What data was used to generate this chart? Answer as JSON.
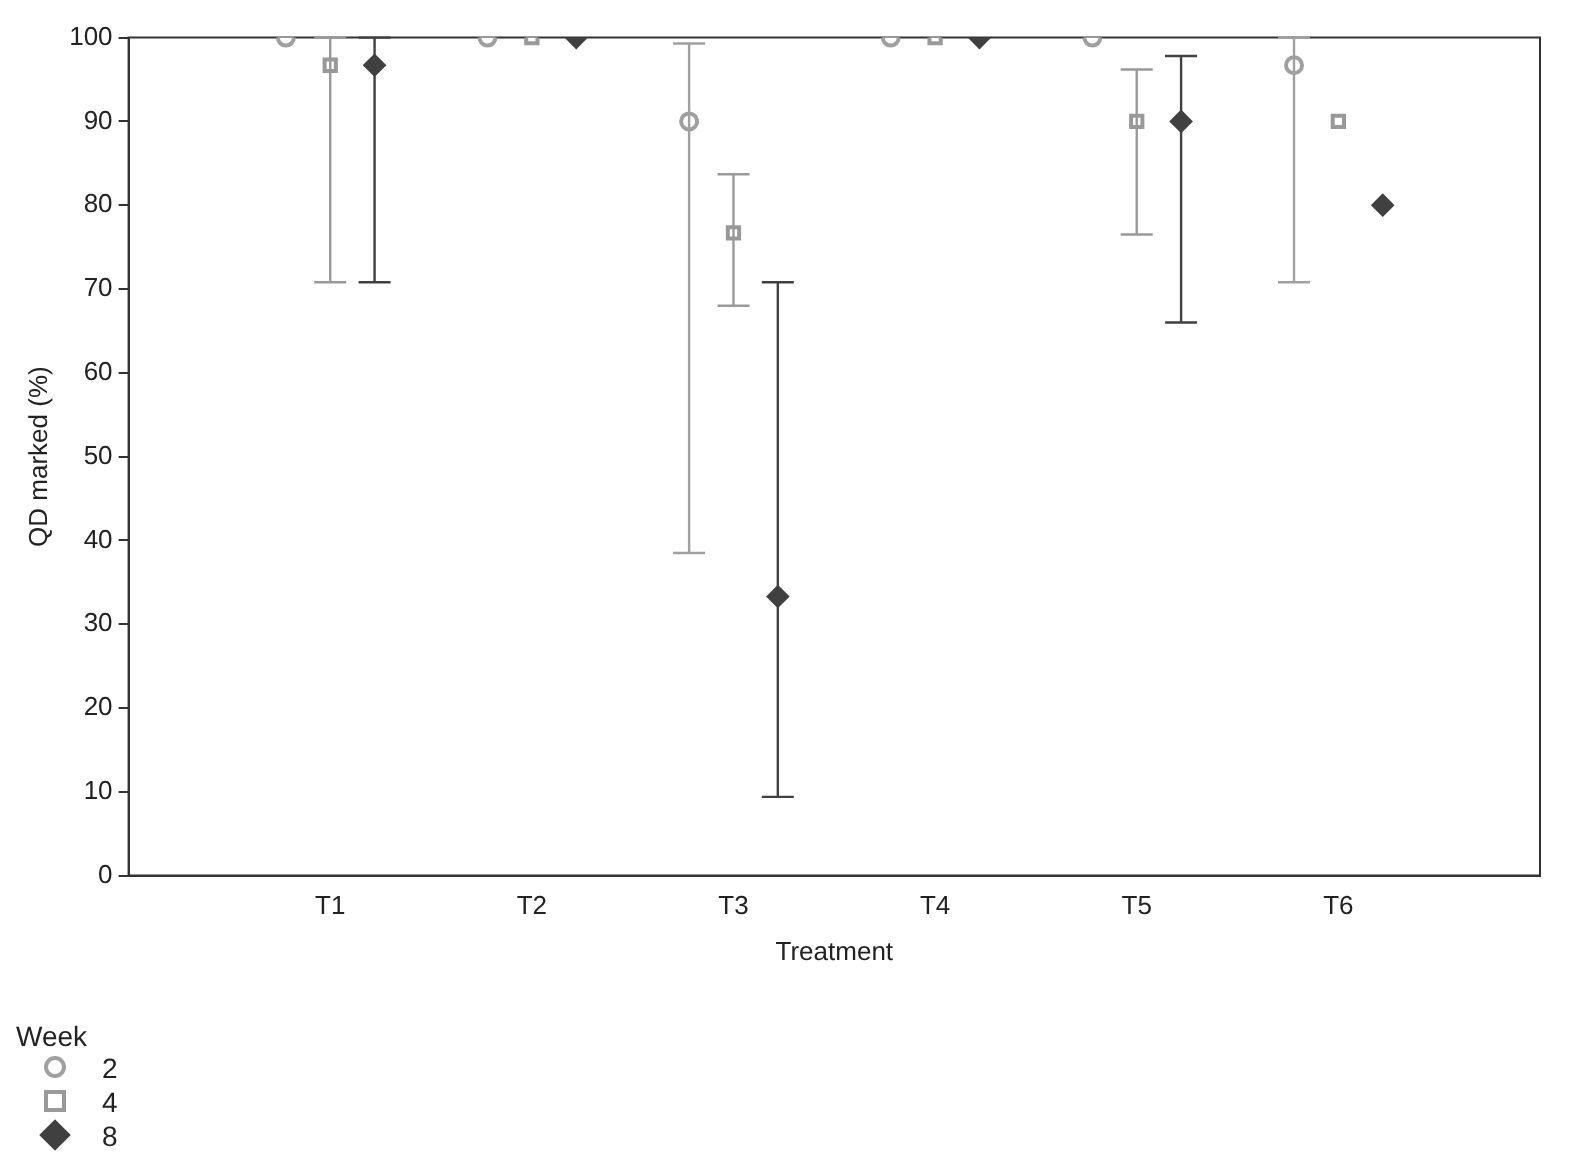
{
  "chart_data": {
    "type": "scatter",
    "xlabel": "Treatment",
    "ylabel": "QD marked (%)",
    "legend_title": "Week",
    "legend": "bottom left",
    "grid": false,
    "categories": [
      "T1",
      "T2",
      "T3",
      "T4",
      "T5",
      "T6"
    ],
    "ylim": [
      0,
      100
    ],
    "yticks": [
      0,
      10,
      20,
      30,
      40,
      50,
      60,
      70,
      80,
      90,
      100
    ],
    "series": [
      {
        "name": "2",
        "color": "#a0a0a0",
        "marker": "circle",
        "values": [
          100,
          100,
          90,
          100,
          100,
          96.7
        ],
        "errors": [
          null,
          null,
          [
            38.5,
            99.3
          ],
          null,
          null,
          [
            70.8,
            100
          ]
        ]
      },
      {
        "name": "4",
        "color": "#999999",
        "marker": "square",
        "values": [
          96.7,
          100,
          76.7,
          100,
          90,
          90
        ],
        "errors": [
          [
            70.8,
            100
          ],
          null,
          [
            68,
            83.7
          ],
          null,
          [
            76.5,
            96.2
          ],
          null
        ]
      },
      {
        "name": "8",
        "color": "#404040",
        "marker": "diamond",
        "values": [
          96.7,
          100,
          33.3,
          100,
          90,
          80
        ],
        "errors": [
          [
            70.8,
            100
          ],
          null,
          [
            9.4,
            70.8
          ],
          null,
          [
            66,
            97.8
          ],
          null
        ]
      }
    ]
  }
}
